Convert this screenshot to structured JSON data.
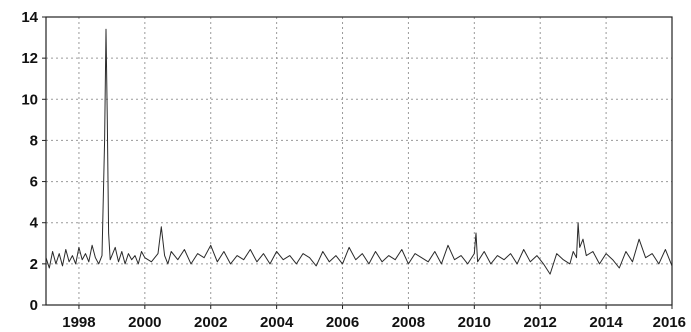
{
  "chart_data": {
    "type": "line",
    "title": "",
    "xlabel": "",
    "ylabel": "",
    "xlim": [
      1997.0,
      2016.0
    ],
    "ylim": [
      0,
      14
    ],
    "x_ticks": [
      1998,
      2000,
      2002,
      2004,
      2006,
      2008,
      2010,
      2012,
      2014,
      2016
    ],
    "y_ticks": [
      0,
      2,
      4,
      6,
      8,
      10,
      12,
      14
    ],
    "x_tick_labels": [
      "1998",
      "2000",
      "2002",
      "2004",
      "2006",
      "2008",
      "2010",
      "2012",
      "2014",
      "2016"
    ],
    "y_tick_labels": [
      "0",
      "2",
      "4",
      "6",
      "8",
      "10",
      "12",
      "14"
    ],
    "grid": true,
    "legend": "none",
    "line_color": "#2a2a2a",
    "series": [
      {
        "x": [
          1997.0,
          1997.1,
          1997.2,
          1997.3,
          1997.4,
          1997.5,
          1997.6,
          1997.7,
          1997.8,
          1997.9,
          1998.0,
          1998.1,
          1998.2,
          1998.3,
          1998.4,
          1998.5,
          1998.6,
          1998.7,
          1998.78,
          1998.82,
          1998.86,
          1998.9,
          1998.95,
          1999.0,
          1999.1,
          1999.2,
          1999.3,
          1999.4,
          1999.5,
          1999.6,
          1999.7,
          1999.8,
          1999.9,
          2000.0,
          2000.2,
          2000.4,
          2000.5,
          2000.6,
          2000.7,
          2000.8,
          2001.0,
          2001.2,
          2001.4,
          2001.6,
          2001.8,
          2002.0,
          2002.2,
          2002.4,
          2002.6,
          2002.8,
          2003.0,
          2003.2,
          2003.4,
          2003.6,
          2003.8,
          2004.0,
          2004.2,
          2004.4,
          2004.6,
          2004.8,
          2005.0,
          2005.2,
          2005.4,
          2005.6,
          2005.8,
          2006.0,
          2006.2,
          2006.4,
          2006.6,
          2006.8,
          2007.0,
          2007.2,
          2007.4,
          2007.6,
          2007.8,
          2008.0,
          2008.2,
          2008.4,
          2008.6,
          2008.8,
          2009.0,
          2009.2,
          2009.4,
          2009.6,
          2009.8,
          2010.0,
          2010.05,
          2010.1,
          2010.3,
          2010.5,
          2010.7,
          2010.9,
          2011.1,
          2011.3,
          2011.5,
          2011.7,
          2011.9,
          2012.1,
          2012.3,
          2012.5,
          2012.7,
          2012.9,
          2013.0,
          2013.1,
          2013.15,
          2013.2,
          2013.3,
          2013.4,
          2013.6,
          2013.8,
          2014.0,
          2014.2,
          2014.4,
          2014.6,
          2014.8,
          2015.0,
          2015.2,
          2015.4,
          2015.6,
          2015.8,
          2016.0
        ],
        "y": [
          2.3,
          1.8,
          2.6,
          2.0,
          2.5,
          1.9,
          2.7,
          2.1,
          2.4,
          2.0,
          2.8,
          2.2,
          2.5,
          2.1,
          2.9,
          2.3,
          2.0,
          2.4,
          8.0,
          13.4,
          9.0,
          3.5,
          2.2,
          2.4,
          2.8,
          2.1,
          2.6,
          2.0,
          2.5,
          2.2,
          2.4,
          2.0,
          2.6,
          2.3,
          2.1,
          2.5,
          3.8,
          2.4,
          2.0,
          2.6,
          2.2,
          2.7,
          2.0,
          2.5,
          2.3,
          2.9,
          2.1,
          2.6,
          2.0,
          2.4,
          2.2,
          2.7,
          2.1,
          2.5,
          2.0,
          2.6,
          2.2,
          2.4,
          2.0,
          2.5,
          2.3,
          1.9,
          2.6,
          2.1,
          2.4,
          2.0,
          2.8,
          2.2,
          2.5,
          2.0,
          2.6,
          2.1,
          2.4,
          2.2,
          2.7,
          2.0,
          2.5,
          2.3,
          2.1,
          2.6,
          2.0,
          2.9,
          2.2,
          2.4,
          2.0,
          2.5,
          3.5,
          2.1,
          2.6,
          2.0,
          2.4,
          2.2,
          2.5,
          2.0,
          2.7,
          2.1,
          2.4,
          2.0,
          1.5,
          2.5,
          2.2,
          2.0,
          2.6,
          2.3,
          4.0,
          2.8,
          3.2,
          2.4,
          2.6,
          2.0,
          2.5,
          2.2,
          1.8,
          2.6,
          2.1,
          3.2,
          2.3,
          2.5,
          2.0,
          2.7,
          1.9
        ]
      }
    ]
  }
}
